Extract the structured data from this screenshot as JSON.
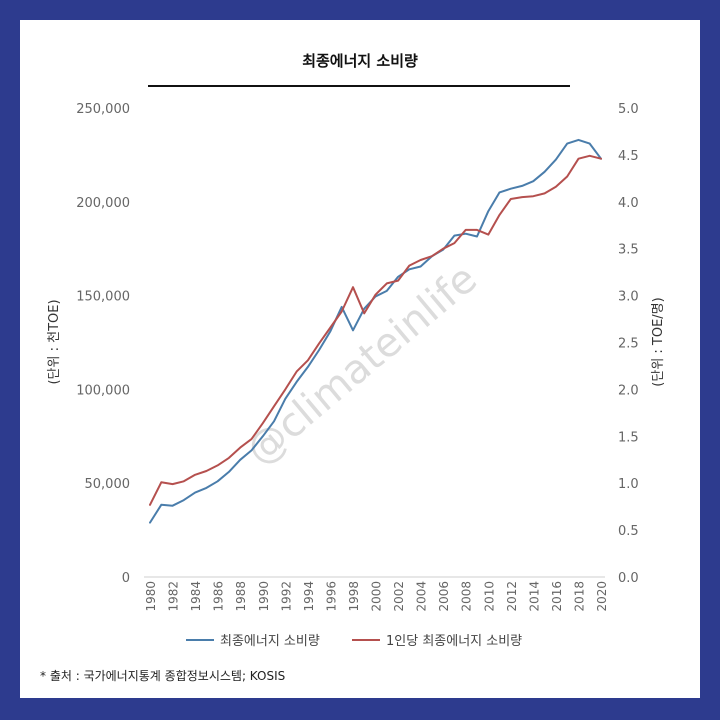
{
  "title": "최종에너지 소비량",
  "source": "* 출처 : 국가에너지통계 종합정보시스템; KOSIS",
  "watermark": "@climateinlife",
  "colors": {
    "frame": "#2d3b8e",
    "series1": "#4a7dab",
    "series2": "#b5504e"
  },
  "chart_data": {
    "type": "line",
    "title": "최종에너지 소비량",
    "x": [
      1980,
      1981,
      1982,
      1983,
      1984,
      1985,
      1986,
      1987,
      1988,
      1989,
      1990,
      1991,
      1992,
      1993,
      1994,
      1995,
      1996,
      1997,
      1998,
      1999,
      2000,
      2001,
      2002,
      2003,
      2004,
      2005,
      2006,
      2007,
      2008,
      2009,
      2010,
      2011,
      2012,
      2013,
      2014,
      2015,
      2016,
      2017,
      2018,
      2019,
      2020
    ],
    "x_tick_labels": [
      "1980",
      "1982",
      "1984",
      "1986",
      "1988",
      "1990",
      "1992",
      "1994",
      "1996",
      "1998",
      "2000",
      "2002",
      "2004",
      "2006",
      "2008",
      "2010",
      "2012",
      "2014",
      "2016",
      "2018",
      "2020"
    ],
    "y_left": {
      "label": "(단위 : 천TOE)",
      "ylim": [
        0,
        250000
      ],
      "tick_labels": [
        "0",
        "50,000",
        "100,000",
        "150,000",
        "200,000",
        "250,000"
      ]
    },
    "y_right": {
      "label": "(단위 : TOE/명)",
      "ylim": [
        0,
        5.0
      ],
      "tick_labels": [
        "0.0",
        "0.5",
        "1.0",
        "1.5",
        "2.0",
        "2.5",
        "3.0",
        "3.5",
        "4.0",
        "4.5",
        "5.0"
      ]
    },
    "series": [
      {
        "name": "최종에너지 소비량",
        "axis": "left",
        "color": "#4a7dab",
        "values": [
          29000,
          38500,
          38000,
          41000,
          45000,
          47500,
          51000,
          56000,
          62500,
          67500,
          75000,
          83000,
          95000,
          104000,
          112000,
          121000,
          131000,
          144000,
          131500,
          143000,
          149500,
          152500,
          160000,
          164000,
          165500,
          171000,
          174500,
          182000,
          183000,
          181500,
          195000,
          205000,
          207000,
          208500,
          211000,
          216000,
          222500,
          231000,
          233000,
          231000,
          223000
        ]
      },
      {
        "name": "1인당 최종에너지 소비량",
        "axis": "right",
        "color": "#b5504e",
        "values": [
          0.77,
          1.01,
          0.99,
          1.02,
          1.09,
          1.13,
          1.19,
          1.27,
          1.38,
          1.47,
          1.64,
          1.82,
          2.0,
          2.19,
          2.31,
          2.49,
          2.66,
          2.83,
          3.09,
          2.81,
          3.01,
          3.13,
          3.16,
          3.32,
          3.38,
          3.42,
          3.5,
          3.56,
          3.7,
          3.7,
          3.65,
          3.86,
          4.03,
          4.05,
          4.06,
          4.09,
          4.16,
          4.27,
          4.46,
          4.49,
          4.46
        ]
      }
    ],
    "legend_position": "bottom",
    "grid": false
  }
}
